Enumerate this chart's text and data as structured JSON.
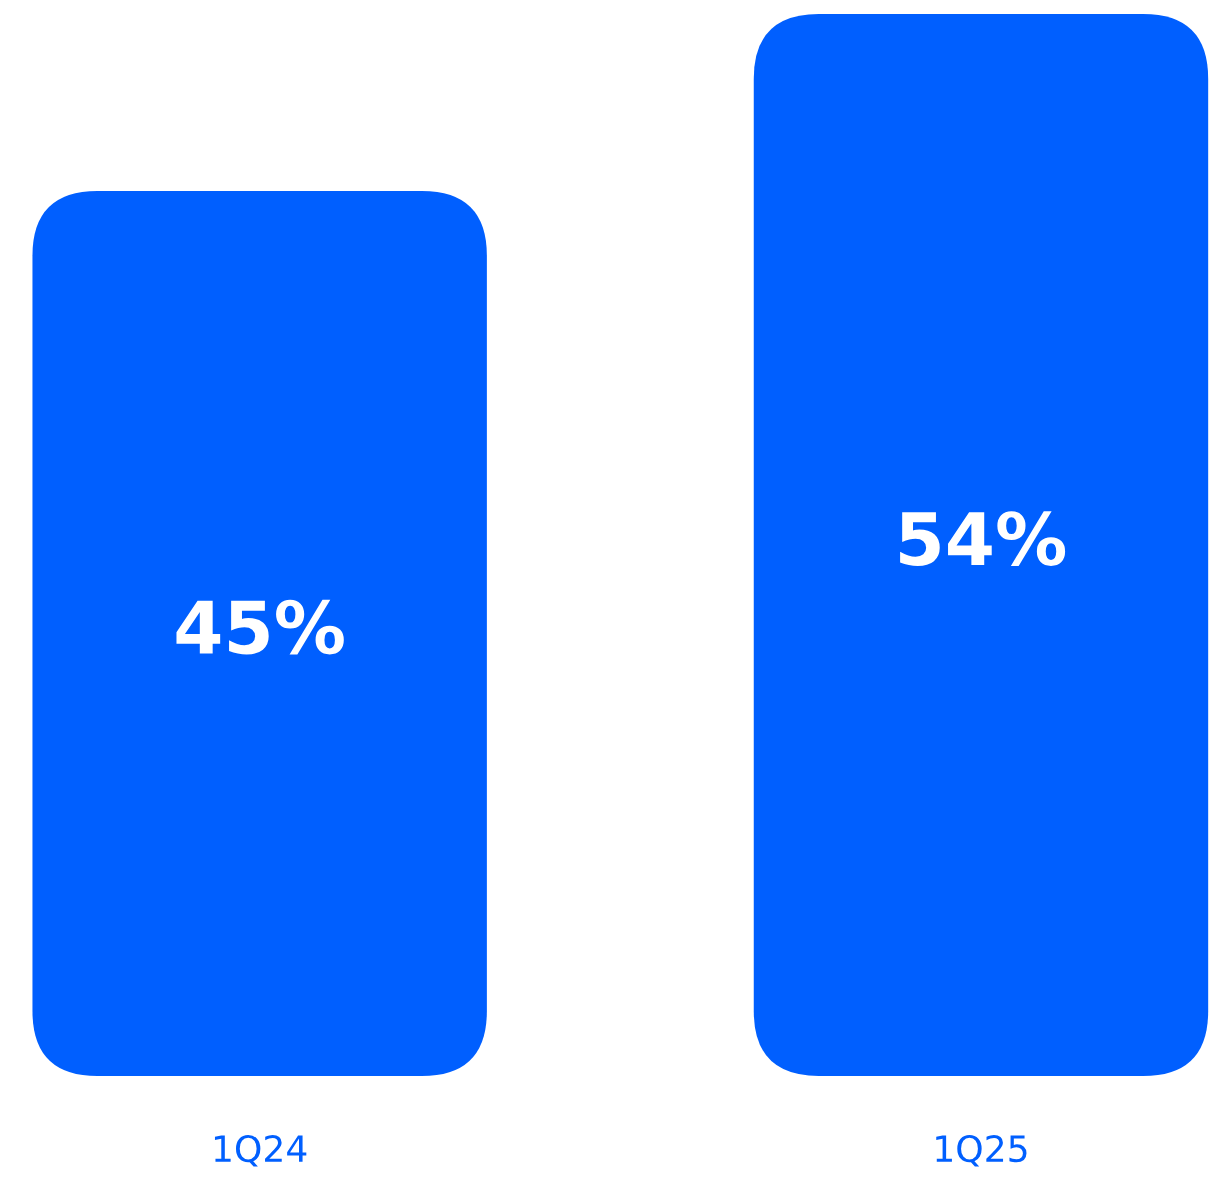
{
  "chart_data": {
    "type": "bar",
    "categories": [
      "1Q24",
      "1Q25"
    ],
    "values": [
      45,
      54
    ],
    "value_labels": [
      "45%",
      "54%"
    ],
    "color": "#005fff",
    "ylim": [
      0,
      54
    ],
    "grid": false,
    "legend": false
  }
}
